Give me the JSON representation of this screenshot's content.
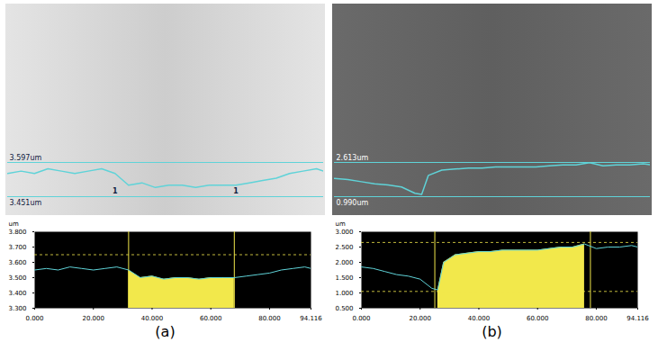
{
  "chart_data": [
    {
      "type": "line",
      "title": "(a)",
      "y_label": "um",
      "image_band": {
        "ylim": [
          3.451,
          3.597
        ],
        "labels": [
          "3.597um",
          "3.451um"
        ]
      },
      "markers": [
        {
          "x": 32,
          "label": "1"
        },
        {
          "x": 68,
          "label": "1"
        }
      ],
      "x": [
        0,
        4,
        8,
        12,
        16,
        20,
        24,
        28,
        32,
        36,
        40,
        44,
        48,
        52,
        56,
        60,
        64,
        68,
        72,
        76,
        80,
        84,
        88,
        92,
        94.116
      ],
      "values": [
        3.55,
        3.56,
        3.55,
        3.57,
        3.56,
        3.55,
        3.56,
        3.57,
        3.55,
        3.5,
        3.51,
        3.49,
        3.5,
        3.5,
        3.49,
        3.5,
        3.5,
        3.5,
        3.51,
        3.52,
        3.53,
        3.55,
        3.56,
        3.57,
        3.56
      ],
      "color": "#5fd3d8",
      "region": [
        32,
        68
      ],
      "guide_lines": [
        3.65
      ],
      "xlim": [
        0,
        94.116
      ],
      "xticks": [
        {
          "value": 0,
          "label": "0.000"
        },
        {
          "value": 20,
          "label": "20.000"
        },
        {
          "value": 40,
          "label": "40.000"
        },
        {
          "value": 60,
          "label": "60.000"
        },
        {
          "value": 80,
          "label": "80.000"
        },
        {
          "value": 94.116,
          "label": "94.116"
        }
      ],
      "ylim": [
        3.3,
        3.8
      ],
      "yticks": [
        {
          "value": 3.3,
          "label": "3.300"
        },
        {
          "value": 3.4,
          "label": "3.400"
        },
        {
          "value": 3.5,
          "label": "3.500"
        },
        {
          "value": 3.6,
          "label": "3.600"
        },
        {
          "value": 3.7,
          "label": "3.700"
        },
        {
          "value": 3.8,
          "label": "3.800"
        }
      ],
      "grid": false
    },
    {
      "type": "line",
      "title": "(b)",
      "y_label": "um",
      "image_band": {
        "ylim": [
          0.99,
          2.613
        ],
        "labels": [
          "2.613um",
          "0.990um"
        ]
      },
      "markers": [],
      "x": [
        0,
        4,
        8,
        12,
        16,
        20,
        24,
        26,
        28,
        32,
        36,
        40,
        44,
        48,
        52,
        56,
        60,
        64,
        68,
        72,
        76,
        80,
        84,
        88,
        92,
        94.116
      ],
      "values": [
        1.85,
        1.8,
        1.7,
        1.6,
        1.55,
        1.45,
        1.15,
        1.1,
        2.0,
        2.25,
        2.3,
        2.35,
        2.35,
        2.4,
        2.4,
        2.4,
        2.4,
        2.45,
        2.5,
        2.5,
        2.6,
        2.45,
        2.5,
        2.5,
        2.55,
        2.5
      ],
      "color": "#5fd3d8",
      "region": [
        25,
        78
      ],
      "guide_lines": [
        2.65,
        1.05
      ],
      "xlim": [
        0,
        94.116
      ],
      "xticks": [
        {
          "value": 0,
          "label": "0.000"
        },
        {
          "value": 20,
          "label": "20.000"
        },
        {
          "value": 40,
          "label": "40.000"
        },
        {
          "value": 60,
          "label": "60.000"
        },
        {
          "value": 80,
          "label": "80.000"
        },
        {
          "value": 94.116,
          "label": "94.116"
        }
      ],
      "ylim": [
        0.5,
        3.0
      ],
      "yticks": [
        {
          "value": 0.5,
          "label": "0.500"
        },
        {
          "value": 1.0,
          "label": "1.000"
        },
        {
          "value": 1.5,
          "label": "1.500"
        },
        {
          "value": 2.0,
          "label": "2.000"
        },
        {
          "value": 2.5,
          "label": "2.500"
        },
        {
          "value": 3.0,
          "label": "3.000"
        }
      ],
      "grid": false
    }
  ]
}
